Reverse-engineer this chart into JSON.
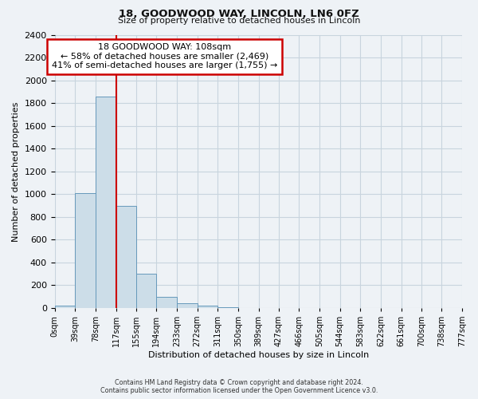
{
  "title": "18, GOODWOOD WAY, LINCOLN, LN6 0FZ",
  "subtitle": "Size of property relative to detached houses in Lincoln",
  "xlabel": "Distribution of detached houses by size in Lincoln",
  "ylabel": "Number of detached properties",
  "footer_line1": "Contains HM Land Registry data © Crown copyright and database right 2024.",
  "footer_line2": "Contains public sector information licensed under the Open Government Licence v3.0.",
  "bin_edges": [
    0,
    39,
    78,
    117,
    155,
    194,
    233,
    272,
    311,
    350,
    389,
    427,
    466,
    505,
    544,
    583,
    622,
    661,
    700,
    738,
    777
  ],
  "bin_labels": [
    "0sqm",
    "39sqm",
    "78sqm",
    "117sqm",
    "155sqm",
    "194sqm",
    "233sqm",
    "272sqm",
    "311sqm",
    "350sqm",
    "389sqm",
    "427sqm",
    "466sqm",
    "505sqm",
    "544sqm",
    "583sqm",
    "622sqm",
    "661sqm",
    "700sqm",
    "738sqm",
    "777sqm"
  ],
  "bar_heights": [
    20,
    1010,
    1860,
    900,
    300,
    100,
    40,
    20,
    5,
    0,
    0,
    0,
    0,
    0,
    0,
    0,
    0,
    0,
    0,
    0
  ],
  "bar_color": "#ccdde8",
  "bar_edge_color": "#6699bb",
  "red_line_x": 117,
  "annotation_title": "18 GOODWOOD WAY: 108sqm",
  "annotation_line1": "← 58% of detached houses are smaller (2,469)",
  "annotation_line2": "41% of semi-detached houses are larger (1,755) →",
  "annotation_box_color": "#ffffff",
  "annotation_box_edge_color": "#cc0000",
  "ylim_max": 2400,
  "yticks": [
    0,
    200,
    400,
    600,
    800,
    1000,
    1200,
    1400,
    1600,
    1800,
    2000,
    2200,
    2400
  ],
  "red_line_color": "#cc0000",
  "grid_color": "#c8d4de",
  "background_color": "#eef2f6"
}
